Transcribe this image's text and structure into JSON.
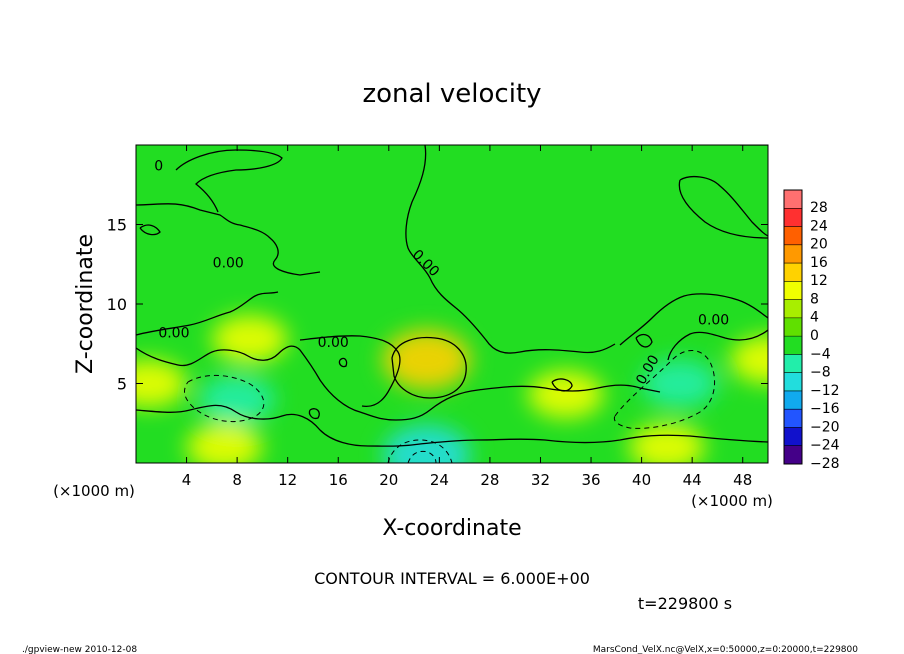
{
  "chart_data": {
    "type": "heatmap",
    "title": "zonal velocity",
    "xlabel": "X-coordinate",
    "ylabel": "Z-coordinate",
    "x_unit_left": "(×1000 m)",
    "x_unit_right": "(×1000 m)",
    "xlim": [
      0,
      50
    ],
    "ylim": [
      0,
      20
    ],
    "x_ticks": [
      4,
      8,
      12,
      16,
      20,
      24,
      28,
      32,
      36,
      40,
      44,
      48
    ],
    "y_ticks": [
      5,
      10,
      15
    ],
    "colorbar_ticks": [
      28,
      24,
      20,
      16,
      12,
      8,
      4,
      0,
      -4,
      -8,
      -12,
      -16,
      -20,
      -24,
      -28
    ],
    "contour_interval_text": "CONTOUR INTERVAL = 6.000E+00",
    "time_text": "t=229800 s",
    "contour_labels": [
      "0",
      "0.00",
      "0.00",
      "0.00",
      "0.00",
      "0.00",
      "0.00"
    ],
    "features": [
      {
        "x": 23,
        "z": 6.5,
        "value": 10
      },
      {
        "x": 9,
        "z": 7.8,
        "value": 8
      },
      {
        "x": 42,
        "z": 1,
        "value": 8
      },
      {
        "x": 7,
        "z": 1,
        "value": 8
      },
      {
        "x": 1,
        "z": 5,
        "value": 8
      },
      {
        "x": 8,
        "z": 4,
        "value": -8
      },
      {
        "x": 43,
        "z": 5,
        "value": -8
      },
      {
        "x": 23,
        "z": 0.5,
        "value": -12
      },
      {
        "x": 50,
        "z": 6.5,
        "value": 8
      },
      {
        "x": 34,
        "z": 4.3,
        "value": 8
      }
    ]
  },
  "footer": {
    "left": "./gpview-new   2010-12-08",
    "right": "MarsCond_VelX.nc@VelX,x=0:50000,z=0:20000,t=229800"
  },
  "colors": {
    "background_field": "#22dd22",
    "palette": [
      "#ff7070",
      "#ff3030",
      "#ff6000",
      "#ff9900",
      "#ffd200",
      "#f0ff00",
      "#a8ee00",
      "#60e000",
      "#22dd22",
      "#22eeaa",
      "#22dddd",
      "#11aaee",
      "#2255ff",
      "#1111cc",
      "#440088"
    ]
  }
}
